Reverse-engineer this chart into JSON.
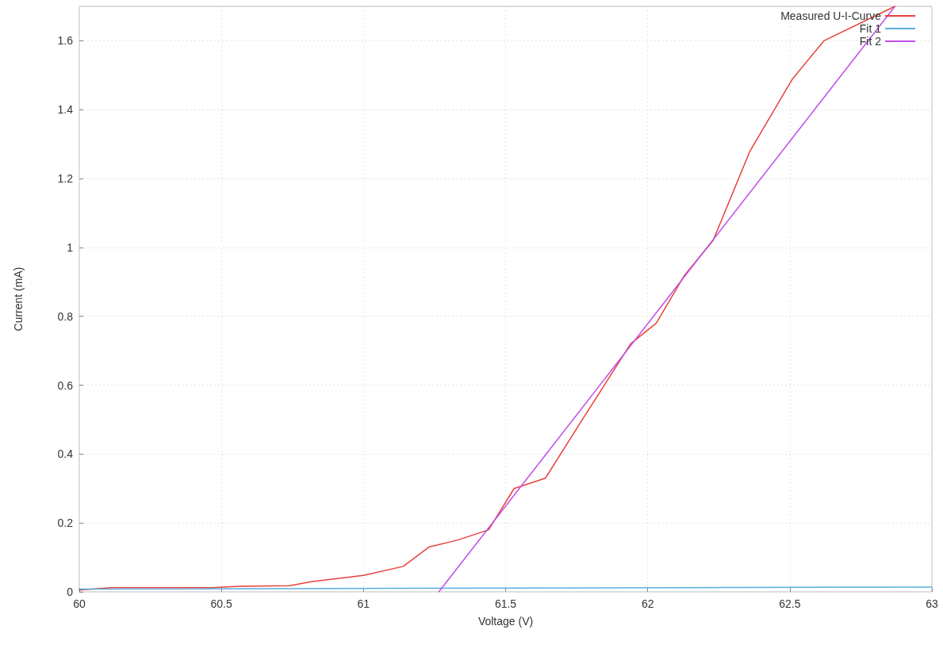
{
  "chart_data": {
    "type": "line",
    "xlabel": "Voltage (V)",
    "ylabel": "Current (mA)",
    "xlim": [
      60,
      63
    ],
    "xticks": [
      60,
      60.5,
      61,
      61.5,
      62,
      62.5,
      63
    ],
    "ylim": [
      0,
      1.7
    ],
    "yticks": [
      0,
      0.2,
      0.4,
      0.6,
      0.8,
      1,
      1.2,
      1.4,
      1.6
    ],
    "grid": true,
    "legend": "top right",
    "marker": "none",
    "line_style": "solid",
    "series": [
      {
        "name": "Measured U-I-Curve",
        "color": "#e8413b",
        "x": [
          60,
          60.11,
          60.47,
          60.56,
          60.74,
          60.82,
          61.0,
          61.14,
          61.23,
          61.33,
          61.44,
          61.53,
          61.64,
          61.77,
          61.94,
          62.03,
          62.13,
          62.23,
          62.36,
          62.51,
          62.62,
          62.87
        ],
        "values": [
          0.005,
          0.012,
          0.012,
          0.016,
          0.018,
          0.03,
          0.048,
          0.074,
          0.13,
          0.15,
          0.18,
          0.3,
          0.33,
          0.5,
          0.72,
          0.78,
          0.92,
          1.02,
          1.28,
          1.49,
          1.6,
          1.7
        ]
      },
      {
        "name": "Fit 1",
        "color": "#5aaee0",
        "x": [
          60,
          63
        ],
        "values": [
          0.008,
          0.014
        ]
      },
      {
        "name": "Fit 2",
        "color": "#c04ee8",
        "x": [
          61.265,
          62.87
        ],
        "values": [
          0,
          1.7
        ]
      }
    ]
  }
}
